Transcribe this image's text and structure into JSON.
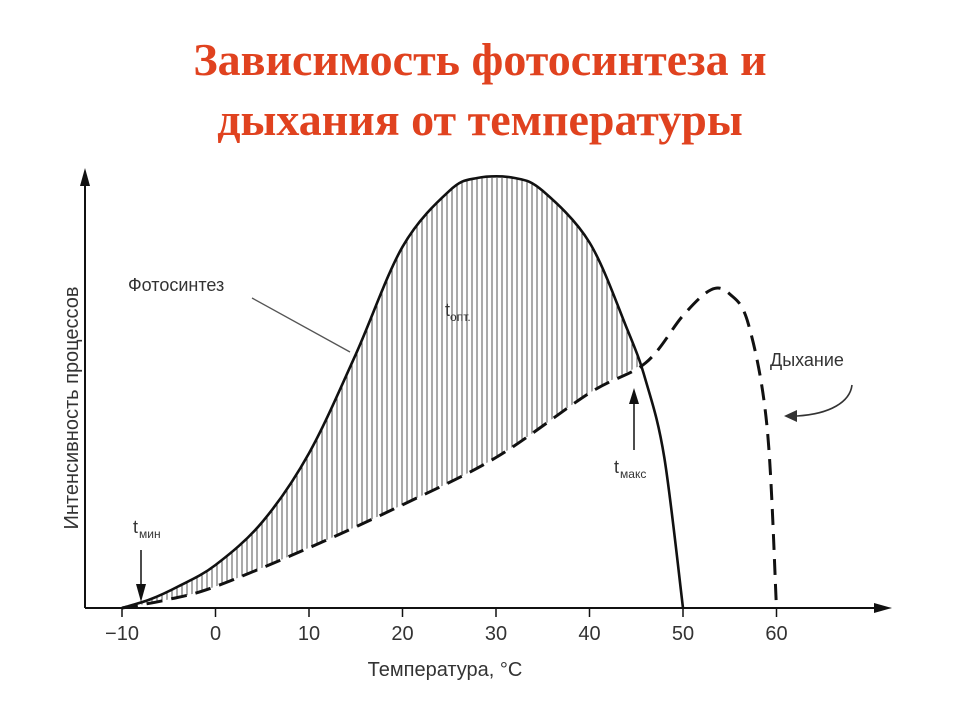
{
  "title_lines": [
    "Зависимость фотосинтеза и",
    "дыхания от температуры"
  ],
  "colors": {
    "title": "#e0421f",
    "ink": "#111111",
    "text": "#333333"
  },
  "chart_data": {
    "type": "line",
    "xlabel": "Температура, °C",
    "ylabel": "Интенсивность процессов",
    "xlim": [
      -10,
      70
    ],
    "ylim": [
      0,
      100
    ],
    "y_ticks_shown": false,
    "x_ticks": [
      -10,
      0,
      10,
      20,
      30,
      40,
      50,
      60
    ],
    "x_tick_labels": [
      "−10",
      "0",
      "10",
      "20",
      "30",
      "40",
      "50",
      "60"
    ],
    "series": [
      {
        "name": "Фотосинтез",
        "style": "solid",
        "points": [
          [
            -10,
            0
          ],
          [
            -7,
            2
          ],
          [
            -4,
            5
          ],
          [
            0,
            10
          ],
          [
            5,
            20
          ],
          [
            10,
            36
          ],
          [
            15,
            59
          ],
          [
            20,
            84
          ],
          [
            25,
            97
          ],
          [
            28,
            100
          ],
          [
            32,
            100
          ],
          [
            35,
            97
          ],
          [
            40,
            85
          ],
          [
            44,
            65
          ],
          [
            46,
            53
          ],
          [
            48,
            35
          ],
          [
            50,
            0
          ]
        ]
      },
      {
        "name": "Дыхание",
        "style": "dashed",
        "points": [
          [
            -10,
            0
          ],
          [
            -5,
            2
          ],
          [
            0,
            5
          ],
          [
            10,
            14
          ],
          [
            20,
            24
          ],
          [
            30,
            35
          ],
          [
            40,
            50
          ],
          [
            46,
            57
          ],
          [
            50,
            68
          ],
          [
            53,
            74
          ],
          [
            55,
            73
          ],
          [
            57,
            66
          ],
          [
            59,
            42
          ],
          [
            60,
            0
          ]
        ]
      }
    ],
    "hatched_region": "area between Фотосинтез and Дыхание from −10 to 46",
    "annotations": [
      {
        "text": "Фотосинтез",
        "points_to": "Фотосинтез"
      },
      {
        "text": "Дыхание",
        "points_to": "Дыхание"
      },
      {
        "main": "t",
        "sub": "опт.",
        "x": 30
      },
      {
        "main": "t",
        "sub": "мин",
        "x": -10
      },
      {
        "main": "t",
        "sub": "макс",
        "x": 46
      }
    ]
  }
}
